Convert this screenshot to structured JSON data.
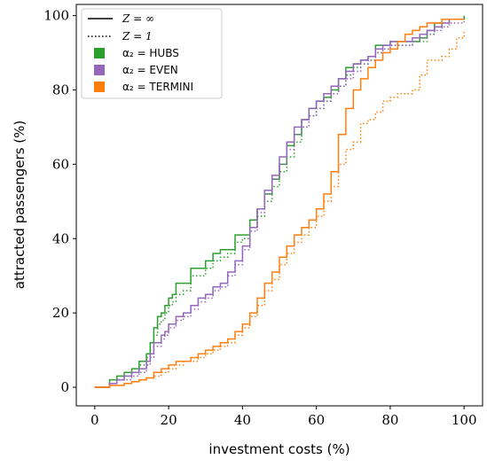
{
  "chart_data": {
    "type": "line",
    "xlabel": "investment costs (%)",
    "ylabel": "attracted passengers (%)",
    "xlim": [
      -5,
      105
    ],
    "ylim": [
      -5,
      103
    ],
    "xticks": [
      "0",
      "20",
      "40",
      "60",
      "80",
      "100"
    ],
    "yticks": [
      "0",
      "20",
      "40",
      "60",
      "80",
      "100"
    ],
    "grid": false,
    "legend_position": "top-left",
    "legend": [
      {
        "label": "Z = ∞",
        "style": "solid",
        "color": "#000000"
      },
      {
        "label": "Z = 1",
        "style": "dotted",
        "color": "#000000"
      },
      {
        "label": "α₂ = HUBS",
        "color": "#2ca02c"
      },
      {
        "label": "α₂ = EVEN",
        "color": "#9467bd"
      },
      {
        "label": "α₂ = TERMINI",
        "color": "#ff7f0e"
      }
    ],
    "series": [
      {
        "name": "α₂ = HUBS, Z = ∞",
        "color": "#2ca02c",
        "style": "solid",
        "x": [
          0,
          4,
          6,
          8,
          10,
          12,
          14,
          15,
          16,
          17,
          18,
          19,
          20,
          21,
          22,
          24,
          26,
          28,
          30,
          32,
          34,
          36,
          38,
          40,
          42,
          44,
          46,
          48,
          50,
          52,
          54,
          56,
          58,
          60,
          62,
          64,
          66,
          68,
          70,
          72,
          74,
          76,
          78,
          80,
          82,
          84,
          86,
          88,
          90,
          92,
          94,
          96,
          98,
          100
        ],
        "y": [
          0,
          2,
          3,
          4,
          5,
          7,
          9,
          12,
          16,
          19,
          20,
          22,
          24,
          25,
          28,
          28,
          32,
          32,
          34,
          36,
          37,
          37,
          41,
          41,
          45,
          48,
          52,
          56,
          60,
          65,
          68,
          72,
          75,
          77,
          78,
          80,
          83,
          86,
          87,
          88,
          89,
          92,
          92,
          93,
          93,
          93,
          93,
          94,
          96,
          98,
          99,
          99,
          99,
          100
        ]
      },
      {
        "name": "α₂ = HUBS, Z = 1",
        "color": "#2ca02c",
        "style": "dotted",
        "x": [
          0,
          4,
          6,
          8,
          10,
          12,
          14,
          15,
          16,
          17,
          18,
          19,
          20,
          21,
          22,
          24,
          26,
          28,
          30,
          32,
          34,
          36,
          38,
          40,
          42,
          44,
          46,
          48,
          50,
          52,
          54,
          56,
          58,
          60,
          62,
          64,
          66,
          68,
          70,
          72,
          74,
          76,
          78,
          80,
          82,
          84,
          86,
          88,
          90,
          92,
          94,
          96,
          98,
          100
        ],
        "y": [
          0,
          1,
          2,
          3,
          4,
          6,
          8,
          10,
          14,
          17,
          18,
          20,
          22,
          23,
          25,
          26,
          30,
          30,
          32,
          34,
          35,
          36,
          39,
          40,
          43,
          46,
          50,
          54,
          58,
          62,
          66,
          70,
          73,
          75,
          77,
          79,
          81,
          84,
          86,
          87,
          88,
          90,
          91,
          92,
          92,
          92,
          93,
          93,
          95,
          97,
          98,
          99,
          99,
          99
        ]
      },
      {
        "name": "α₂ = EVEN, Z = ∞",
        "color": "#9467bd",
        "style": "solid",
        "x": [
          0,
          4,
          6,
          8,
          10,
          12,
          14,
          15,
          16,
          18,
          19,
          20,
          22,
          24,
          26,
          28,
          30,
          32,
          34,
          36,
          38,
          40,
          42,
          44,
          46,
          48,
          50,
          52,
          54,
          56,
          58,
          60,
          62,
          64,
          66,
          68,
          70,
          72,
          74,
          76,
          78,
          80,
          82,
          84,
          86,
          88,
          90,
          92,
          94,
          96,
          98,
          100
        ],
        "y": [
          0,
          1,
          2,
          3,
          4,
          5,
          7,
          9,
          12,
          14,
          15,
          17,
          19,
          20,
          22,
          24,
          25,
          27,
          28,
          31,
          34,
          38,
          43,
          48,
          53,
          57,
          62,
          66,
          70,
          72,
          75,
          77,
          79,
          81,
          83,
          85,
          87,
          88,
          89,
          91,
          92,
          93,
          93,
          93,
          94,
          95,
          96,
          97,
          98,
          99,
          99,
          99
        ]
      },
      {
        "name": "α₂ = EVEN, Z = 1",
        "color": "#9467bd",
        "style": "dotted",
        "x": [
          0,
          4,
          6,
          8,
          10,
          12,
          14,
          15,
          16,
          18,
          19,
          20,
          22,
          24,
          26,
          28,
          30,
          32,
          34,
          36,
          38,
          40,
          42,
          44,
          46,
          48,
          50,
          52,
          54,
          56,
          58,
          60,
          62,
          64,
          66,
          68,
          70,
          72,
          74,
          76,
          78,
          80,
          82,
          84,
          86,
          88,
          90,
          92,
          94,
          96,
          98,
          100
        ],
        "y": [
          0,
          1,
          2,
          2,
          3,
          4,
          6,
          8,
          11,
          13,
          14,
          16,
          18,
          19,
          21,
          23,
          24,
          26,
          27,
          30,
          33,
          37,
          42,
          47,
          52,
          56,
          60,
          64,
          68,
          70,
          73,
          75,
          77,
          79,
          81,
          83,
          85,
          87,
          88,
          90,
          91,
          92,
          92,
          92,
          93,
          94,
          95,
          96,
          97,
          98,
          98,
          99
        ]
      },
      {
        "name": "α₂ = TERMINI, Z = ∞",
        "color": "#ff7f0e",
        "style": "solid",
        "x": [
          0,
          4,
          8,
          10,
          12,
          14,
          16,
          18,
          20,
          22,
          24,
          26,
          28,
          30,
          32,
          34,
          36,
          38,
          40,
          42,
          44,
          46,
          48,
          50,
          52,
          54,
          56,
          58,
          60,
          62,
          64,
          66,
          68,
          70,
          72,
          74,
          76,
          78,
          80,
          82,
          84,
          86,
          88,
          90,
          92,
          94,
          96,
          98,
          100
        ],
        "y": [
          0,
          0.5,
          1,
          1.5,
          2,
          2.5,
          4,
          5,
          6,
          7,
          7,
          8,
          9,
          10,
          11,
          12,
          13,
          15,
          17,
          20,
          24,
          28,
          31,
          35,
          38,
          41,
          43,
          45,
          48,
          52,
          58,
          68,
          75,
          80,
          83,
          86,
          88,
          90,
          91,
          93,
          95,
          96,
          97,
          98,
          98,
          99,
          99,
          99,
          99
        ]
      },
      {
        "name": "α₂ = TERMINI, Z = 1",
        "color": "#ff7f0e",
        "style": "dotted",
        "x": [
          0,
          4,
          8,
          10,
          12,
          14,
          16,
          18,
          20,
          22,
          24,
          26,
          28,
          30,
          32,
          34,
          36,
          38,
          40,
          42,
          44,
          46,
          48,
          50,
          52,
          54,
          56,
          58,
          60,
          62,
          64,
          66,
          68,
          70,
          72,
          74,
          76,
          78,
          80,
          82,
          84,
          86,
          88,
          90,
          92,
          94,
          96,
          98,
          100
        ],
        "y": [
          0,
          0.5,
          1,
          1.5,
          2,
          2.5,
          3,
          4,
          5,
          6,
          7,
          7,
          8,
          9,
          10,
          11,
          12,
          14,
          16,
          19,
          22,
          26,
          29,
          33,
          36,
          39,
          41,
          43,
          46,
          50,
          54,
          60,
          64,
          66,
          71,
          72,
          74,
          77,
          78,
          79,
          79,
          80,
          84,
          88,
          88,
          89,
          91,
          94,
          96
        ]
      }
    ]
  }
}
